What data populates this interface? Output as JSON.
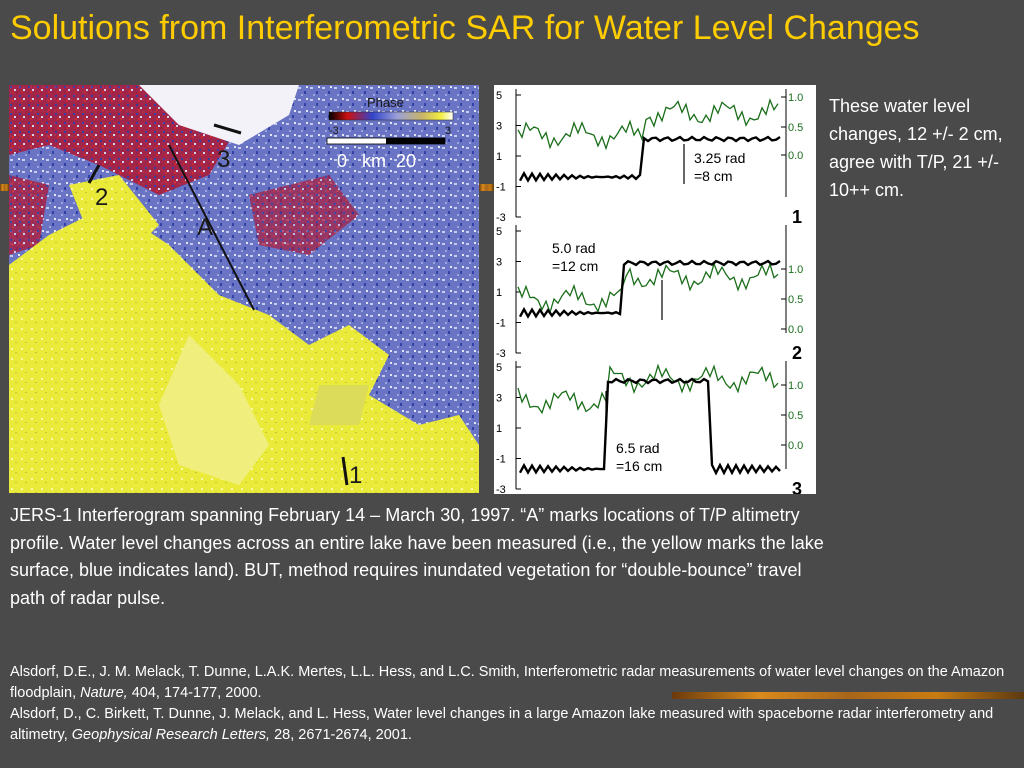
{
  "slide": {
    "title": "Solutions from Interferometric SAR for Water Level Changes",
    "side_note": "These water level changes, 12 +/- 2 cm, agree with T/P, 21 +/- 10++ cm.",
    "caption": "JERS-1 Interferogram spanning February 14 – March 30, 1997.  “A” marks locations of T/P altimetry profile.  Water level changes across an entire lake have been measured (i.e., the yellow marks the lake surface, blue indicates land).  BUT, method requires inundated vegetation for “double-bounce” travel path of radar pulse.",
    "references": [
      {
        "pre": "Alsdorf, D.E., J. M. Melack, T. Dunne, L.A.K. Mertes, L.L. Hess, and L.C. Smith, Interferometric radar measurements of water level changes on the Amazon floodplain, ",
        "journal": "Nature,",
        "post": " 404, 174-177, 2000."
      },
      {
        "pre": "Alsdorf, D., C. Birkett, T. Dunne, J. Melack, and L. Hess, Water level changes in a large Amazon lake measured with spaceborne radar interferometry and altimetry, ",
        "journal": "Geophysical Research Letters,",
        "post": " 28, 2671-2674, 2001."
      }
    ]
  },
  "map": {
    "legend_title": "Phase",
    "legend_min": "-3",
    "legend_max": "3",
    "scale_label": "0   km  20",
    "profile_label": "A",
    "transect_labels": [
      "3",
      "2",
      "1"
    ],
    "phase_colors": [
      "#000000",
      "#cc1111",
      "#3344cc",
      "#6a74cc",
      "#9aa0d8",
      "#c9b46a",
      "#f2ee40",
      "#ffffff"
    ]
  },
  "profiles": {
    "left_ticks": [
      "5",
      "3",
      "1",
      "-1",
      "-3"
    ],
    "right_ticks": [
      "1.0",
      "0.5",
      "0.0"
    ],
    "panels": [
      {
        "number": "1",
        "rad_label": "3.25 rad",
        "cm_label": "=8 cm"
      },
      {
        "number": "2",
        "rad_label": "5.0 rad",
        "cm_label": "=12 cm"
      },
      {
        "number": "3",
        "rad_label": "6.5 rad",
        "cm_label": "=16 cm"
      }
    ]
  },
  "colors": {
    "title": "#ffcc00",
    "background": "#4a4a4a",
    "coherence_line": "#1a6e1a",
    "phase_line": "#000000"
  }
}
